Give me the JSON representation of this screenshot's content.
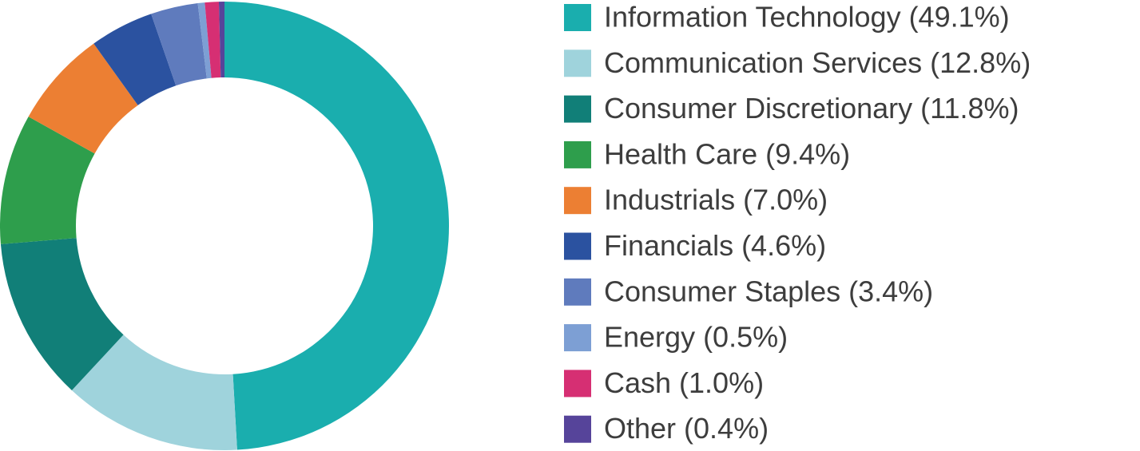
{
  "chart_data": {
    "type": "donut",
    "categories": [
      "Information Technology (49.1%)",
      "Communication Services (12.8%)",
      "Consumer Discretionary (11.8%)",
      "Health Care (9.4%)",
      "Industrials (7.0%)",
      "Financials (4.6%)",
      "Consumer Staples (3.4%)",
      "Energy (0.5%)",
      "Cash (1.0%)",
      "Other (0.4%)"
    ],
    "values": [
      49.1,
      12.8,
      11.8,
      9.4,
      7.0,
      4.6,
      3.4,
      0.5,
      1.0,
      0.4
    ],
    "colors": [
      "#1aaeae",
      "#9fd3dc",
      "#117f78",
      "#2e9e4c",
      "#ec7f33",
      "#2b52a0",
      "#5f7bbd",
      "#7d9fd4",
      "#d62f73",
      "#56449a"
    ]
  }
}
